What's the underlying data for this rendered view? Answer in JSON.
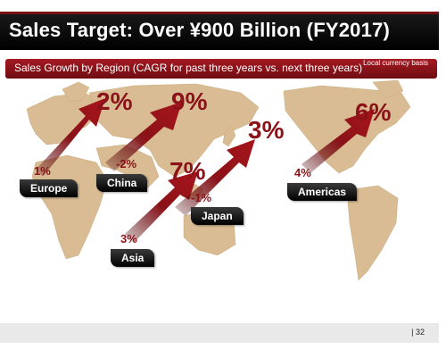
{
  "header": {
    "title": "Sales Target: Over ¥900 Billion (FY2017)"
  },
  "banner": {
    "text": "Sales Growth by Region (CAGR for past three years vs. next three years)",
    "basis": "Local currency basis"
  },
  "regions": [
    {
      "name": "Europe",
      "past": "1%",
      "next": "2%"
    },
    {
      "name": "China",
      "past": "-2%",
      "next": "9%"
    },
    {
      "name": "Asia",
      "past": "3%",
      "next": "7%"
    },
    {
      "name": "Japan",
      "past": "-1%",
      "next": "3%"
    },
    {
      "name": "Americas",
      "past": "4%",
      "next": "6%"
    }
  ],
  "footer": {
    "page_number": "| 32"
  },
  "colors": {
    "map": "#d9bc93",
    "arrow": "#8a1218",
    "banner": "#a51922"
  }
}
